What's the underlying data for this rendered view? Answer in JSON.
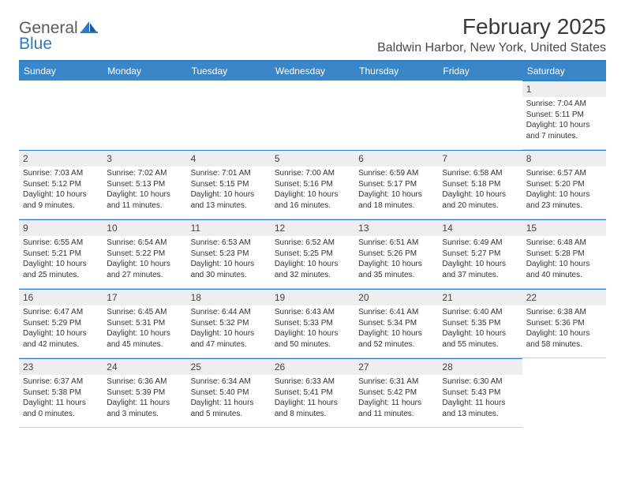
{
  "logo": {
    "text1": "General",
    "text2": "Blue"
  },
  "title": "February 2025",
  "location": "Baldwin Harbor, New York, United States",
  "colors": {
    "header_bar": "#3a86c8",
    "divider": "#2f78c3",
    "daynum_bg": "#eeeeee",
    "text": "#333333"
  },
  "weekdays": [
    "Sunday",
    "Monday",
    "Tuesday",
    "Wednesday",
    "Thursday",
    "Friday",
    "Saturday"
  ],
  "cells": [
    {
      "empty": true
    },
    {
      "empty": true
    },
    {
      "empty": true
    },
    {
      "empty": true
    },
    {
      "empty": true
    },
    {
      "empty": true
    },
    {
      "day": "1",
      "sunrise": "Sunrise: 7:04 AM",
      "sunset": "Sunset: 5:11 PM",
      "daylight": "Daylight: 10 hours and 7 minutes."
    },
    {
      "day": "2",
      "sunrise": "Sunrise: 7:03 AM",
      "sunset": "Sunset: 5:12 PM",
      "daylight": "Daylight: 10 hours and 9 minutes."
    },
    {
      "day": "3",
      "sunrise": "Sunrise: 7:02 AM",
      "sunset": "Sunset: 5:13 PM",
      "daylight": "Daylight: 10 hours and 11 minutes."
    },
    {
      "day": "4",
      "sunrise": "Sunrise: 7:01 AM",
      "sunset": "Sunset: 5:15 PM",
      "daylight": "Daylight: 10 hours and 13 minutes."
    },
    {
      "day": "5",
      "sunrise": "Sunrise: 7:00 AM",
      "sunset": "Sunset: 5:16 PM",
      "daylight": "Daylight: 10 hours and 16 minutes."
    },
    {
      "day": "6",
      "sunrise": "Sunrise: 6:59 AM",
      "sunset": "Sunset: 5:17 PM",
      "daylight": "Daylight: 10 hours and 18 minutes."
    },
    {
      "day": "7",
      "sunrise": "Sunrise: 6:58 AM",
      "sunset": "Sunset: 5:18 PM",
      "daylight": "Daylight: 10 hours and 20 minutes."
    },
    {
      "day": "8",
      "sunrise": "Sunrise: 6:57 AM",
      "sunset": "Sunset: 5:20 PM",
      "daylight": "Daylight: 10 hours and 23 minutes."
    },
    {
      "day": "9",
      "sunrise": "Sunrise: 6:55 AM",
      "sunset": "Sunset: 5:21 PM",
      "daylight": "Daylight: 10 hours and 25 minutes."
    },
    {
      "day": "10",
      "sunrise": "Sunrise: 6:54 AM",
      "sunset": "Sunset: 5:22 PM",
      "daylight": "Daylight: 10 hours and 27 minutes."
    },
    {
      "day": "11",
      "sunrise": "Sunrise: 6:53 AM",
      "sunset": "Sunset: 5:23 PM",
      "daylight": "Daylight: 10 hours and 30 minutes."
    },
    {
      "day": "12",
      "sunrise": "Sunrise: 6:52 AM",
      "sunset": "Sunset: 5:25 PM",
      "daylight": "Daylight: 10 hours and 32 minutes."
    },
    {
      "day": "13",
      "sunrise": "Sunrise: 6:51 AM",
      "sunset": "Sunset: 5:26 PM",
      "daylight": "Daylight: 10 hours and 35 minutes."
    },
    {
      "day": "14",
      "sunrise": "Sunrise: 6:49 AM",
      "sunset": "Sunset: 5:27 PM",
      "daylight": "Daylight: 10 hours and 37 minutes."
    },
    {
      "day": "15",
      "sunrise": "Sunrise: 6:48 AM",
      "sunset": "Sunset: 5:28 PM",
      "daylight": "Daylight: 10 hours and 40 minutes."
    },
    {
      "day": "16",
      "sunrise": "Sunrise: 6:47 AM",
      "sunset": "Sunset: 5:29 PM",
      "daylight": "Daylight: 10 hours and 42 minutes."
    },
    {
      "day": "17",
      "sunrise": "Sunrise: 6:45 AM",
      "sunset": "Sunset: 5:31 PM",
      "daylight": "Daylight: 10 hours and 45 minutes."
    },
    {
      "day": "18",
      "sunrise": "Sunrise: 6:44 AM",
      "sunset": "Sunset: 5:32 PM",
      "daylight": "Daylight: 10 hours and 47 minutes."
    },
    {
      "day": "19",
      "sunrise": "Sunrise: 6:43 AM",
      "sunset": "Sunset: 5:33 PM",
      "daylight": "Daylight: 10 hours and 50 minutes."
    },
    {
      "day": "20",
      "sunrise": "Sunrise: 6:41 AM",
      "sunset": "Sunset: 5:34 PM",
      "daylight": "Daylight: 10 hours and 52 minutes."
    },
    {
      "day": "21",
      "sunrise": "Sunrise: 6:40 AM",
      "sunset": "Sunset: 5:35 PM",
      "daylight": "Daylight: 10 hours and 55 minutes."
    },
    {
      "day": "22",
      "sunrise": "Sunrise: 6:38 AM",
      "sunset": "Sunset: 5:36 PM",
      "daylight": "Daylight: 10 hours and 58 minutes."
    },
    {
      "day": "23",
      "sunrise": "Sunrise: 6:37 AM",
      "sunset": "Sunset: 5:38 PM",
      "daylight": "Daylight: 11 hours and 0 minutes."
    },
    {
      "day": "24",
      "sunrise": "Sunrise: 6:36 AM",
      "sunset": "Sunset: 5:39 PM",
      "daylight": "Daylight: 11 hours and 3 minutes."
    },
    {
      "day": "25",
      "sunrise": "Sunrise: 6:34 AM",
      "sunset": "Sunset: 5:40 PM",
      "daylight": "Daylight: 11 hours and 5 minutes."
    },
    {
      "day": "26",
      "sunrise": "Sunrise: 6:33 AM",
      "sunset": "Sunset: 5:41 PM",
      "daylight": "Daylight: 11 hours and 8 minutes."
    },
    {
      "day": "27",
      "sunrise": "Sunrise: 6:31 AM",
      "sunset": "Sunset: 5:42 PM",
      "daylight": "Daylight: 11 hours and 11 minutes."
    },
    {
      "day": "28",
      "sunrise": "Sunrise: 6:30 AM",
      "sunset": "Sunset: 5:43 PM",
      "daylight": "Daylight: 11 hours and 13 minutes."
    },
    {
      "empty": true
    }
  ]
}
